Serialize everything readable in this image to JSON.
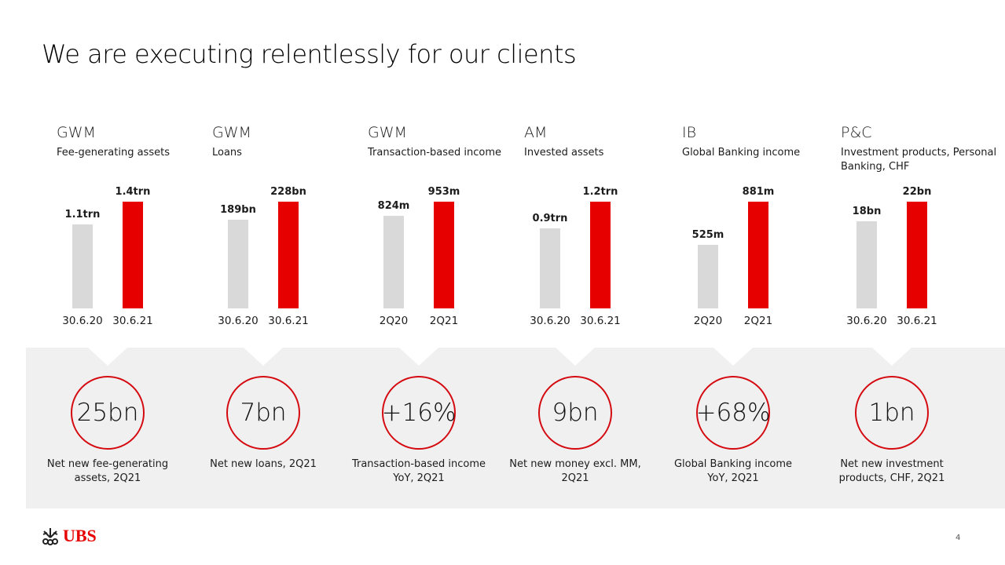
{
  "title": "We are executing relentlessly for our clients",
  "colors": {
    "current": "#e60000",
    "previous": "#d9d9d9",
    "circle": "#d40a10",
    "band": "#f0f0f0"
  },
  "chart_data": [
    {
      "type": "bar",
      "segment": "GWM",
      "subtitle": "Fee-generating assets",
      "categories": [
        "30.6.20",
        "30.6.21"
      ],
      "values": [
        1.1,
        1.4
      ],
      "unit": "trn",
      "data_labels": [
        "1.1trn",
        "1.4trn"
      ]
    },
    {
      "type": "bar",
      "segment": "GWM",
      "subtitle": "Loans",
      "categories": [
        "30.6.20",
        "30.6.21"
      ],
      "values": [
        189,
        228
      ],
      "unit": "bn",
      "data_labels": [
        "189bn",
        "228bn"
      ]
    },
    {
      "type": "bar",
      "segment": "GWM",
      "subtitle": "Transaction-based income",
      "categories": [
        "2Q20",
        "2Q21"
      ],
      "values": [
        824,
        953
      ],
      "unit": "m",
      "data_labels": [
        "824m",
        "953m"
      ]
    },
    {
      "type": "bar",
      "segment": "AM",
      "subtitle": "Invested assets",
      "categories": [
        "30.6.20",
        "30.6.21"
      ],
      "values": [
        0.9,
        1.2
      ],
      "unit": "trn",
      "data_labels": [
        "0.9trn",
        "1.2trn"
      ]
    },
    {
      "type": "bar",
      "segment": "IB",
      "subtitle": "Global Banking income",
      "categories": [
        "2Q20",
        "2Q21"
      ],
      "values": [
        525,
        881
      ],
      "unit": "m",
      "data_labels": [
        "525m",
        "881m"
      ]
    },
    {
      "type": "bar",
      "segment": "P&C",
      "subtitle": "Investment products, Personal Banking, CHF",
      "categories": [
        "30.6.20",
        "30.6.21"
      ],
      "values": [
        18,
        22
      ],
      "unit": "bn",
      "data_labels": [
        "18bn",
        "22bn"
      ]
    }
  ],
  "kpis": [
    {
      "value": "25bn",
      "label": "Net new fee-generating assets, 2Q21"
    },
    {
      "value": "7bn",
      "label": "Net new loans, 2Q21"
    },
    {
      "value": "+16%",
      "label": "Transaction-based income YoY, 2Q21"
    },
    {
      "value": "9bn",
      "label": "Net new money excl. MM, 2Q21"
    },
    {
      "value": "+68%",
      "label": "Global Banking income YoY, 2Q21"
    },
    {
      "value": "1bn",
      "label": "Net new investment products, CHF, 2Q21"
    }
  ],
  "footer": {
    "logo_text": "UBS",
    "page_number": "4"
  }
}
